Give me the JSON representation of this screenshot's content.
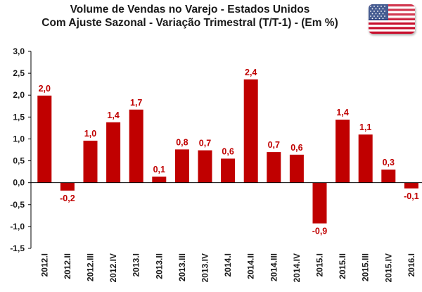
{
  "title": {
    "line1": "Volume de Vendas no Varejo - Estados Unidos",
    "line2": "Com Ajuste Sazonal - Variação Trimestral (T/T-1) - (Em %)"
  },
  "flag": {
    "icon": "us-flag-icon"
  },
  "colors": {
    "bar": "#c00000",
    "label": "#c00000",
    "text": "#1a1a1a",
    "axis": "#000000"
  },
  "chart_data": {
    "type": "bar",
    "categories": [
      "2012.I",
      "2012.II",
      "2012.III",
      "2012.IV",
      "2013.I",
      "2013.II",
      "2013.III",
      "2013.IV",
      "2014.I",
      "2014.II",
      "2014.III",
      "2014.IV",
      "2015.I",
      "2015.II",
      "2015.III",
      "2015.IV",
      "2016.I"
    ],
    "values": [
      2.0,
      -0.2,
      1.0,
      1.4,
      1.7,
      0.1,
      0.8,
      0.7,
      0.6,
      2.4,
      0.7,
      0.6,
      -0.9,
      1.4,
      1.1,
      0.3,
      -0.1
    ],
    "value_labels": [
      "2,0",
      "-0,2",
      "1,0",
      "1,4",
      "1,7",
      "0,1",
      "0,8",
      "0,7",
      "0,6",
      "2,4",
      "0,7",
      "0,6",
      "-0,9",
      "1,4",
      "1,1",
      "0,3",
      "-0,1"
    ],
    "plotted_values": [
      1.99,
      -0.18,
      0.96,
      1.38,
      1.67,
      0.14,
      0.76,
      0.74,
      0.55,
      2.36,
      0.7,
      0.64,
      -0.93,
      1.44,
      1.1,
      0.3,
      -0.13
    ],
    "ylim": [
      -1.5,
      3.0
    ],
    "yticks": [
      -1.5,
      -1.0,
      -0.5,
      0.0,
      0.5,
      1.0,
      1.5,
      2.0,
      2.5,
      3.0
    ],
    "ytick_labels": [
      "-1,5",
      "-1,0",
      "-0,5",
      "0,0",
      "0,5",
      "1,0",
      "1,5",
      "2,0",
      "2,5",
      "3,0"
    ],
    "xlabel": "",
    "ylabel": "",
    "grid": false,
    "legend": "none",
    "title": "Volume de Vendas no Varejo - Estados Unidos"
  }
}
